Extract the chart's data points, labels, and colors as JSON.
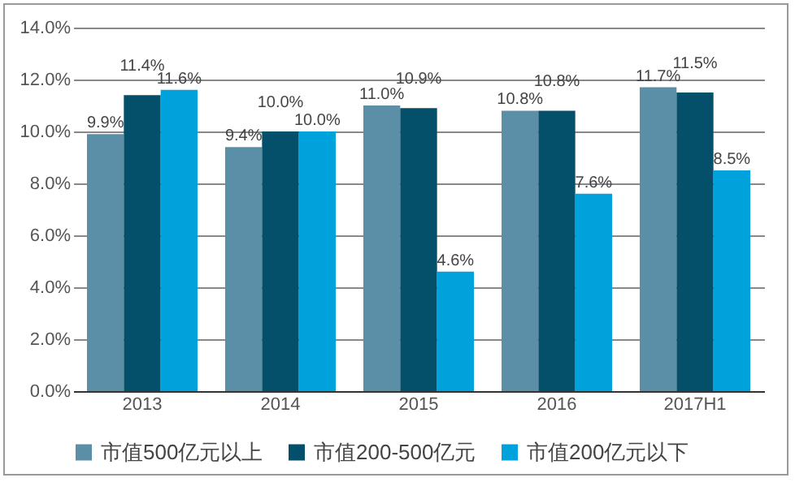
{
  "chart_data": {
    "type": "bar",
    "categories": [
      "2013",
      "2014",
      "2015",
      "2016",
      "2017H1"
    ],
    "series": [
      {
        "name": "市值500亿元以上",
        "color": "#5b8fa8",
        "values": [
          9.9,
          9.4,
          11.0,
          10.8,
          11.7
        ],
        "value_labels": [
          "9.9%",
          "9.4%",
          "11.0%",
          "10.8%",
          "11.7%"
        ]
      },
      {
        "name": "市值200-500亿元",
        "color": "#044f69",
        "values": [
          11.4,
          10.0,
          10.9,
          10.8,
          11.5
        ],
        "value_labels": [
          "11.4%",
          "10.0%",
          "10.9%",
          "10.8%",
          "11.5%"
        ]
      },
      {
        "name": "市值200亿元以下",
        "color": "#00a2db",
        "values": [
          11.6,
          10.0,
          4.6,
          7.6,
          8.5
        ],
        "value_labels": [
          "11.6%",
          "10.0%",
          "4.6%",
          "7.6%",
          "8.5%"
        ]
      }
    ],
    "ylim": [
      0,
      14
    ],
    "yticks": [
      {
        "value": 0,
        "label": "0.0%"
      },
      {
        "value": 2,
        "label": "2.0%"
      },
      {
        "value": 4,
        "label": "4.0%"
      },
      {
        "value": 6,
        "label": "6.0%"
      },
      {
        "value": 8,
        "label": "8.0%"
      },
      {
        "value": 10,
        "label": "10.0%"
      },
      {
        "value": 12,
        "label": "12.0%"
      },
      {
        "value": 14,
        "label": "14.0%"
      }
    ],
    "grid": "y",
    "legend": "bottom"
  }
}
